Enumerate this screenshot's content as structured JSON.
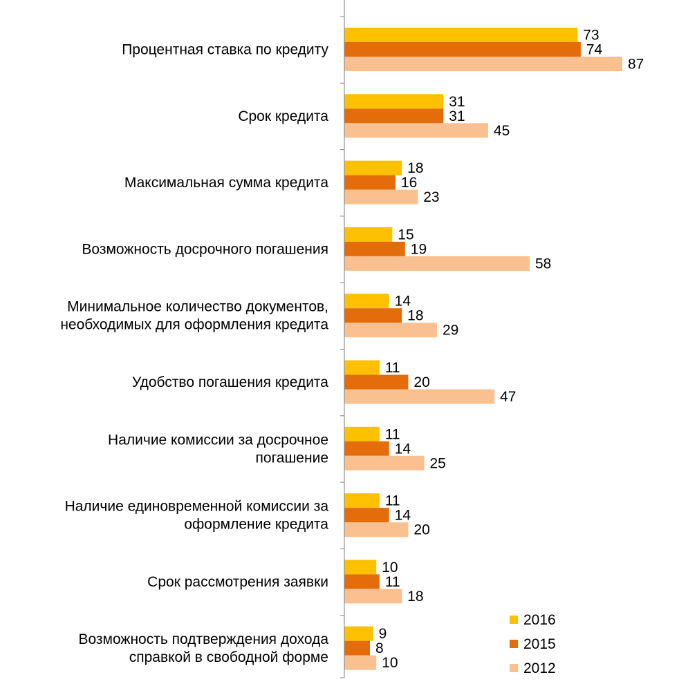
{
  "chart_data": {
    "type": "bar",
    "orientation": "horizontal",
    "categories": [
      [
        "Процентная ставка по кредиту"
      ],
      [
        "Срок кредита"
      ],
      [
        "Максимальная сумма кредита"
      ],
      [
        "Возможность досрочного погашения"
      ],
      [
        "Минимальное количество документов,",
        "необходимых для оформления кредита"
      ],
      [
        "Удобство погашения кредита"
      ],
      [
        "Наличие комиссии за досрочное",
        "погашение"
      ],
      [
        "Наличие единовременной комиссии за",
        "оформление кредита"
      ],
      [
        "Срок рассмотрения заявки"
      ],
      [
        "Возможность подтверждения дохода",
        "справкой в свободной форме"
      ]
    ],
    "series": [
      {
        "name": "2016",
        "color": "#FFC000",
        "values": [
          73,
          31,
          18,
          15,
          14,
          11,
          11,
          11,
          10,
          9
        ]
      },
      {
        "name": "2015",
        "color": "#E46C0A",
        "values": [
          74,
          31,
          16,
          19,
          18,
          20,
          14,
          14,
          11,
          8
        ]
      },
      {
        "name": "2012",
        "color": "#FAC090",
        "values": [
          87,
          45,
          23,
          58,
          29,
          47,
          25,
          20,
          18,
          10
        ]
      }
    ],
    "xlim": [
      0,
      87
    ],
    "grid": false,
    "legend_position": "bottom-right",
    "data_labels": true
  }
}
